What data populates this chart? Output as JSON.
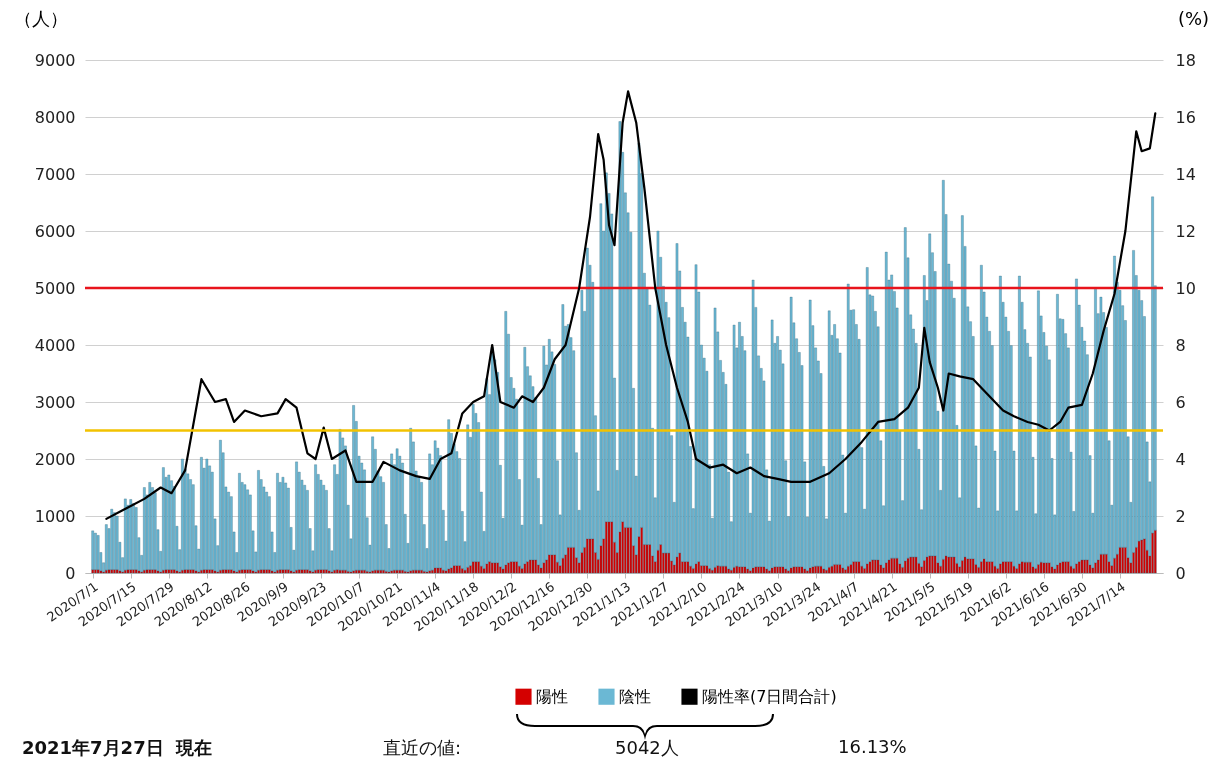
{
  "chart_data": {
    "type": "bar",
    "stacked": true,
    "ylabel": "（人）",
    "y2label": "(%)",
    "x": [
      "2020-07-01",
      "2020-07-02",
      "2020-07-03",
      "2020-07-04",
      "2020-07-05",
      "2020-07-06",
      "2020-07-07",
      "2020-07-08",
      "2020-07-09",
      "2020-07-10",
      "2020-07-11",
      "2020-07-12",
      "2020-07-13",
      "2020-07-14",
      "2020-07-15",
      "2020-07-16",
      "2020-07-17",
      "2020-07-18",
      "2020-07-19",
      "2020-07-20",
      "2020-07-21",
      "2020-07-22",
      "2020-07-23",
      "2020-07-24",
      "2020-07-25",
      "2020-07-26",
      "2020-07-27",
      "2020-07-28",
      "2020-07-29",
      "2020-07-30",
      "2020-07-31",
      "2020-08-01",
      "2020-08-02",
      "2020-08-03",
      "2020-08-04",
      "2020-08-05",
      "2020-08-06",
      "2020-08-07",
      "2020-08-08",
      "2020-08-09",
      "2020-08-10",
      "2020-08-11",
      "2020-08-12",
      "2020-08-13",
      "2020-08-14",
      "2020-08-15",
      "2020-08-16",
      "2020-08-17",
      "2020-08-18",
      "2020-08-19",
      "2020-08-20",
      "2020-08-21",
      "2020-08-22",
      "2020-08-23",
      "2020-08-24",
      "2020-08-25",
      "2020-08-26",
      "2020-08-27",
      "2020-08-28",
      "2020-08-29",
      "2020-08-30",
      "2020-08-31",
      "2020-09-01",
      "2020-09-02",
      "2020-09-03",
      "2020-09-04",
      "2020-09-05",
      "2020-09-06",
      "2020-09-07",
      "2020-09-08",
      "2020-09-09",
      "2020-09-10",
      "2020-09-11",
      "2020-09-12",
      "2020-09-13",
      "2020-09-14",
      "2020-09-15",
      "2020-09-16",
      "2020-09-17",
      "2020-09-18",
      "2020-09-19",
      "2020-09-20",
      "2020-09-21",
      "2020-09-22",
      "2020-09-23",
      "2020-09-24",
      "2020-09-25",
      "2020-09-26",
      "2020-09-27",
      "2020-09-28",
      "2020-09-29",
      "2020-09-30",
      "2020-10-01",
      "2020-10-02",
      "2020-10-03",
      "2020-10-04",
      "2020-10-05",
      "2020-10-06",
      "2020-10-07",
      "2020-10-08",
      "2020-10-09",
      "2020-10-10",
      "2020-10-11",
      "2020-10-12",
      "2020-10-13",
      "2020-10-14",
      "2020-10-15",
      "2020-10-16",
      "2020-10-17",
      "2020-10-18",
      "2020-10-19",
      "2020-10-20",
      "2020-10-21",
      "2020-10-22",
      "2020-10-23",
      "2020-10-24",
      "2020-10-25",
      "2020-10-26",
      "2020-10-27",
      "2020-10-28",
      "2020-10-29",
      "2020-10-30",
      "2020-10-31",
      "2020-11-01",
      "2020-11-02",
      "2020-11-03",
      "2020-11-04",
      "2020-11-05",
      "2020-11-06",
      "2020-11-07",
      "2020-11-08",
      "2020-11-09",
      "2020-11-10",
      "2020-11-11",
      "2020-11-12",
      "2020-11-13",
      "2020-11-14",
      "2020-11-15",
      "2020-11-16",
      "2020-11-17",
      "2020-11-18",
      "2020-11-19",
      "2020-11-20",
      "2020-11-21",
      "2020-11-22",
      "2020-11-23",
      "2020-11-24",
      "2020-11-25",
      "2020-11-26",
      "2020-11-27",
      "2020-11-28",
      "2020-11-29",
      "2020-11-30",
      "2020-12-01",
      "2020-12-02",
      "2020-12-03",
      "2020-12-04",
      "2020-12-05",
      "2020-12-06",
      "2020-12-07",
      "2020-12-08",
      "2020-12-09",
      "2020-12-10",
      "2020-12-11",
      "2020-12-12",
      "2020-12-13",
      "2020-12-14",
      "2020-12-15",
      "2020-12-16",
      "2020-12-17",
      "2020-12-18",
      "2020-12-19",
      "2020-12-20",
      "2020-12-21",
      "2020-12-22",
      "2020-12-23",
      "2020-12-24",
      "2020-12-25",
      "2020-12-26",
      "2020-12-27",
      "2020-12-28",
      "2020-12-29",
      "2020-12-30",
      "2020-12-31",
      "2021-01-01",
      "2021-01-02",
      "2021-01-03",
      "2021-01-04",
      "2021-01-05",
      "2021-01-06",
      "2021-01-07",
      "2021-01-08",
      "2021-01-09",
      "2021-01-10",
      "2021-01-11",
      "2021-01-12",
      "2021-01-13",
      "2021-01-14",
      "2021-01-15",
      "2021-01-16",
      "2021-01-17",
      "2021-01-18",
      "2021-01-19",
      "2021-01-20",
      "2021-01-21",
      "2021-01-22",
      "2021-01-23",
      "2021-01-24",
      "2021-01-25",
      "2021-01-26",
      "2021-01-27",
      "2021-01-28",
      "2021-01-29",
      "2021-01-30",
      "2021-01-31",
      "2021-02-01",
      "2021-02-02",
      "2021-02-03",
      "2021-02-04",
      "2021-02-05",
      "2021-02-06",
      "2021-02-07",
      "2021-02-08",
      "2021-02-09",
      "2021-02-10",
      "2021-02-11",
      "2021-02-12",
      "2021-02-13",
      "2021-02-14",
      "2021-02-15",
      "2021-02-16",
      "2021-02-17",
      "2021-02-18",
      "2021-02-19",
      "2021-02-20",
      "2021-02-21",
      "2021-02-22",
      "2021-02-23",
      "2021-02-24",
      "2021-02-25",
      "2021-02-26",
      "2021-02-27",
      "2021-02-28",
      "2021-03-01",
      "2021-03-02",
      "2021-03-03",
      "2021-03-04",
      "2021-03-05",
      "2021-03-06",
      "2021-03-07",
      "2021-03-08",
      "2021-03-09",
      "2021-03-10",
      "2021-03-11",
      "2021-03-12",
      "2021-03-13",
      "2021-03-14",
      "2021-03-15",
      "2021-03-16",
      "2021-03-17",
      "2021-03-18",
      "2021-03-19",
      "2021-03-20",
      "2021-03-21",
      "2021-03-22",
      "2021-03-23",
      "2021-03-24",
      "2021-03-25",
      "2021-03-26",
      "2021-03-27",
      "2021-03-28",
      "2021-03-29",
      "2021-03-30",
      "2021-03-31",
      "2021-04-01",
      "2021-04-02",
      "2021-04-03",
      "2021-04-04",
      "2021-04-05",
      "2021-04-06",
      "2021-04-07",
      "2021-04-08",
      "2021-04-09",
      "2021-04-10",
      "2021-04-11",
      "2021-04-12",
      "2021-04-13",
      "2021-04-14",
      "2021-04-15",
      "2021-04-16",
      "2021-04-17",
      "2021-04-18",
      "2021-04-19",
      "2021-04-20",
      "2021-04-21",
      "2021-04-22",
      "2021-04-23",
      "2021-04-24",
      "2021-04-25",
      "2021-04-26",
      "2021-04-27",
      "2021-04-28",
      "2021-04-29",
      "2021-04-30",
      "2021-05-01",
      "2021-05-02",
      "2021-05-03",
      "2021-05-04",
      "2021-05-05",
      "2021-05-06",
      "2021-05-07",
      "2021-05-08",
      "2021-05-09",
      "2021-05-10",
      "2021-05-11",
      "2021-05-12",
      "2021-05-13",
      "2021-05-14",
      "2021-05-15",
      "2021-05-16",
      "2021-05-17",
      "2021-05-18",
      "2021-05-19",
      "2021-05-20",
      "2021-05-21",
      "2021-05-22",
      "2021-05-23",
      "2021-05-24",
      "2021-05-25",
      "2021-05-26",
      "2021-05-27",
      "2021-05-28",
      "2021-05-29",
      "2021-05-30",
      "2021-05-31",
      "2021-06-01",
      "2021-06-02",
      "2021-06-03",
      "2021-06-04",
      "2021-06-05",
      "2021-06-06",
      "2021-06-07",
      "2021-06-08",
      "2021-06-09",
      "2021-06-10",
      "2021-06-11",
      "2021-06-12",
      "2021-06-13",
      "2021-06-14",
      "2021-06-15",
      "2021-06-16",
      "2021-06-17",
      "2021-06-18",
      "2021-06-19",
      "2021-06-20",
      "2021-06-21",
      "2021-06-22",
      "2021-06-23",
      "2021-06-24",
      "2021-06-25",
      "2021-06-26",
      "2021-06-27",
      "2021-06-28",
      "2021-06-29",
      "2021-06-30",
      "2021-07-01",
      "2021-07-02",
      "2021-07-03",
      "2021-07-04",
      "2021-07-05",
      "2021-07-06",
      "2021-07-07",
      "2021-07-08",
      "2021-07-09",
      "2021-07-10",
      "2021-07-11",
      "2021-07-12",
      "2021-07-13",
      "2021-07-14",
      "2021-07-15",
      "2021-07-16",
      "2021-07-17",
      "2021-07-18",
      "2021-07-19",
      "2021-07-20",
      "2021-07-21",
      "2021-07-22",
      "2021-07-23",
      "2021-07-24",
      "2021-07-25",
      "2021-07-26",
      "2021-07-27"
    ],
    "series": [
      {
        "name": "陽性",
        "color": "#d40000",
        "values": [
          60,
          60,
          60,
          40,
          20,
          50,
          60,
          60,
          60,
          60,
          40,
          20,
          50,
          60,
          60,
          60,
          60,
          40,
          20,
          50,
          60,
          60,
          60,
          60,
          40,
          20,
          50,
          60,
          60,
          60,
          60,
          40,
          20,
          50,
          60,
          60,
          60,
          60,
          40,
          20,
          50,
          60,
          60,
          60,
          60,
          40,
          20,
          50,
          60,
          60,
          60,
          60,
          40,
          20,
          50,
          60,
          60,
          60,
          60,
          40,
          20,
          50,
          60,
          60,
          60,
          60,
          40,
          20,
          50,
          60,
          60,
          60,
          60,
          40,
          20,
          50,
          60,
          60,
          60,
          60,
          40,
          20,
          50,
          60,
          60,
          60,
          60,
          40,
          20,
          50,
          60,
          50,
          50,
          50,
          30,
          20,
          40,
          50,
          50,
          50,
          50,
          30,
          20,
          40,
          50,
          50,
          50,
          50,
          30,
          20,
          40,
          50,
          50,
          50,
          50,
          30,
          20,
          40,
          50,
          50,
          50,
          50,
          30,
          20,
          40,
          50,
          90,
          90,
          90,
          50,
          40,
          70,
          90,
          130,
          130,
          130,
          80,
          50,
          100,
          130,
          200,
          200,
          200,
          120,
          80,
          160,
          200,
          180,
          180,
          180,
          110,
          70,
          140,
          180,
          200,
          200,
          200,
          120,
          80,
          160,
          200,
          230,
          230,
          230,
          140,
          90,
          180,
          230,
          320,
          320,
          320,
          190,
          130,
          260,
          320,
          450,
          450,
          450,
          270,
          180,
          360,
          450,
          600,
          600,
          600,
          360,
          240,
          480,
          600,
          900,
          900,
          900,
          540,
          360,
          720,
          900,
          800,
          800,
          800,
          480,
          320,
          640,
          800,
          500,
          500,
          500,
          300,
          200,
          400,
          500,
          350,
          350,
          350,
          210,
          140,
          280,
          350,
          200,
          200,
          200,
          120,
          80,
          160,
          200,
          130,
          130,
          130,
          80,
          50,
          100,
          130,
          120,
          120,
          120,
          70,
          50,
          100,
          120,
          110,
          110,
          110,
          70,
          40,
          90,
          110,
          110,
          110,
          110,
          70,
          40,
          90,
          110,
          110,
          110,
          110,
          70,
          40,
          90,
          110,
          110,
          110,
          110,
          70,
          40,
          90,
          110,
          120,
          120,
          120,
          70,
          50,
          100,
          120,
          150,
          150,
          150,
          90,
          60,
          120,
          150,
          200,
          200,
          200,
          120,
          80,
          160,
          200,
          230,
          230,
          230,
          140,
          90,
          180,
          230,
          260,
          260,
          260,
          160,
          100,
          210,
          260,
          280,
          280,
          280,
          170,
          110,
          220,
          280,
          300,
          300,
          300,
          180,
          120,
          240,
          300,
          280,
          280,
          280,
          170,
          110,
          220,
          280,
          250,
          250,
          250,
          150,
          100,
          200,
          250,
          200,
          200,
          200,
          120,
          80,
          160,
          200,
          200,
          200,
          200,
          120,
          80,
          160,
          200,
          190,
          190,
          190,
          110,
          80,
          150,
          190,
          180,
          180,
          180,
          110,
          70,
          140,
          180,
          200,
          200,
          200,
          120,
          80,
          160,
          200,
          230,
          230,
          230,
          140,
          90,
          180,
          230,
          330,
          330,
          330,
          200,
          130,
          260,
          330,
          450,
          450,
          450,
          270,
          180,
          360,
          450,
          560,
          580,
          600,
          400,
          300,
          700,
          750
        ]
      },
      {
        "name": "陰性",
        "color": "#6bb8d4",
        "values": [
          680,
          640,
          600,
          320,
          160,
          800,
          720,
          1060,
          1000,
          940,
          500,
          250,
          1250,
          1130,
          1230,
          1160,
          1090,
          580,
          290,
          1450,
          1310,
          1530,
          1440,
          1350,
          720,
          360,
          1800,
          1620,
          1660,
          1560,
          1460,
          780,
          390,
          1950,
          1760,
          1680,
          1580,
          1490,
          790,
          400,
          1980,
          1780,
          1940,
          1820,
          1710,
          910,
          460,
          2280,
          2050,
          1450,
          1360,
          1280,
          680,
          340,
          1700,
          1530,
          1490,
          1400,
          1310,
          700,
          350,
          1750,
          1580,
          1450,
          1360,
          1280,
          680,
          340,
          1700,
          1530,
          1620,
          1520,
          1430,
          760,
          380,
          1900,
          1710,
          1570,
          1480,
          1390,
          740,
          370,
          1850,
          1670,
          1570,
          1480,
          1390,
          740,
          370,
          1850,
          1670,
          2470,
          2320,
          2180,
          1160,
          580,
          2900,
          2610,
          2000,
          1880,
          1760,
          940,
          470,
          2350,
          2120,
          1740,
          1640,
          1540,
          820,
          410,
          2050,
          1850,
          2130,
          2000,
          1880,
          1000,
          500,
          2500,
          2250,
          1740,
          1640,
          1540,
          820,
          410,
          2050,
          1850,
          2230,
          2100,
          1970,
          1050,
          520,
          2620,
          2360,
          2130,
          2000,
          1880,
          1000,
          500,
          2500,
          2250,
          2760,
          2600,
          2440,
          1300,
          650,
          3250,
          2930,
          3780,
          3560,
          3340,
          1780,
          890,
          4450,
          4010,
          3230,
          3040,
          2850,
          1520,
          760,
          3800,
          3420,
          3230,
          3040,
          2850,
          1520,
          760,
          3800,
          3420,
          3780,
          3560,
          3340,
          1780,
          890,
          4450,
          4010,
          3910,
          3680,
          3450,
          1840,
          920,
          4600,
          4140,
          5100,
          4800,
          4500,
          2400,
          1200,
          6000,
          5400,
          6120,
          5760,
          5400,
          2880,
          1440,
          7200,
          6480,
          5870,
          5520,
          5180,
          2760,
          1380,
          6900,
          6210,
          4760,
          4480,
          4200,
          2240,
          1120,
          5600,
          5040,
          4680,
          4400,
          4130,
          2200,
          1100,
          5500,
          4950,
          4460,
          4200,
          3940,
          2100,
          1050,
          5250,
          4730,
          3870,
          3640,
          3410,
          1820,
          910,
          4550,
          4100,
          3610,
          3400,
          3190,
          1700,
          850,
          4250,
          3830,
          4290,
          4040,
          3790,
          2020,
          1010,
          5050,
          4550,
          3700,
          3480,
          3260,
          1740,
          870,
          4350,
          3920,
          4040,
          3800,
          3560,
          1900,
          950,
          4750,
          4280,
          4000,
          3760,
          3530,
          1880,
          940,
          4700,
          4230,
          3830,
          3600,
          3380,
          1800,
          900,
          4500,
          4050,
          4210,
          3960,
          3710,
          1980,
          990,
          4950,
          4460,
          4420,
          4160,
          3900,
          2080,
          1040,
          5200,
          4680,
          4630,
          4360,
          4090,
          2180,
          1090,
          5450,
          4910,
          4970,
          4680,
          4390,
          2340,
          1170,
          5850,
          5270,
          4250,
          4000,
          3750,
          2000,
          1000,
          5000,
          4500,
          5650,
          5320,
          4990,
          2660,
          1330,
          6650,
          5990,
          5140,
          4840,
          4540,
          2420,
          1210,
          6050,
          5450,
          4420,
          4160,
          3900,
          2080,
          1040,
          5200,
          4680,
          4290,
          4040,
          3790,
          2020,
          1010,
          5050,
          4550,
          4290,
          4040,
          3790,
          2020,
          1010,
          5050,
          4550,
          4080,
          3840,
          3600,
          1920,
          960,
          4800,
          4320,
          4040,
          3800,
          3560,
          1900,
          950,
          4750,
          4280,
          4250,
          4000,
          3750,
          2000,
          1000,
          5000,
          4500,
          4080,
          3840,
          3600,
          1920,
          960,
          4800,
          4320,
          4510,
          4240,
          3980,
          2120,
          1060,
          5300,
          4770,
          4510,
          4240,
          3980,
          2120,
          1060,
          5300,
          4770,
          4400,
          4200,
          3900,
          1900,
          1300,
          5900,
          4290
        ]
      },
      {
        "name": "陽性率(7日間合計)",
        "type": "line",
        "axis": "y2",
        "color": "#000000",
        "x": [
          "2020-07-06",
          "2020-07-12",
          "2020-07-20",
          "2020-07-26",
          "2020-07-30",
          "2020-08-04",
          "2020-08-10",
          "2020-08-15",
          "2020-08-19",
          "2020-08-22",
          "2020-08-26",
          "2020-09-01",
          "2020-09-07",
          "2020-09-10",
          "2020-09-14",
          "2020-09-18",
          "2020-09-21",
          "2020-09-24",
          "2020-09-27",
          "2020-10-02",
          "2020-10-06",
          "2020-10-12",
          "2020-10-16",
          "2020-10-22",
          "2020-10-28",
          "2020-11-02",
          "2020-11-06",
          "2020-11-10",
          "2020-11-14",
          "2020-11-18",
          "2020-11-22",
          "2020-11-25",
          "2020-11-28",
          "2020-12-03",
          "2020-12-06",
          "2020-12-10",
          "2020-12-14",
          "2020-12-18",
          "2020-12-22",
          "2020-12-27",
          "2020-12-31",
          "2021-01-03",
          "2021-01-05",
          "2021-01-07",
          "2021-01-09",
          "2021-01-12",
          "2021-01-14",
          "2021-01-17",
          "2021-01-20",
          "2021-01-24",
          "2021-01-28",
          "2021-02-01",
          "2021-02-05",
          "2021-02-08",
          "2021-02-13",
          "2021-02-18",
          "2021-02-23",
          "2021-02-28",
          "2021-03-05",
          "2021-03-10",
          "2021-03-15",
          "2021-03-22",
          "2021-03-29",
          "2021-04-04",
          "2021-04-10",
          "2021-04-16",
          "2021-04-22",
          "2021-04-27",
          "2021-05-01",
          "2021-05-03",
          "2021-05-05",
          "2021-05-08",
          "2021-05-10",
          "2021-05-12",
          "2021-05-16",
          "2021-05-21",
          "2021-05-26",
          "2021-06-01",
          "2021-06-05",
          "2021-06-10",
          "2021-06-14",
          "2021-06-18",
          "2021-06-22",
          "2021-06-25",
          "2021-06-30",
          "2021-07-04",
          "2021-07-08",
          "2021-07-12",
          "2021-07-16",
          "2021-07-20",
          "2021-07-22",
          "2021-07-25",
          "2021-07-27"
        ],
        "values": [
          1.9,
          2.2,
          2.6,
          3.0,
          2.8,
          3.6,
          6.8,
          6.0,
          6.1,
          5.3,
          5.7,
          5.5,
          5.6,
          6.1,
          5.8,
          4.2,
          4.0,
          5.1,
          4.0,
          4.3,
          3.2,
          3.2,
          3.9,
          3.6,
          3.4,
          3.3,
          4.0,
          4.2,
          5.6,
          6.0,
          6.2,
          8.0,
          6.0,
          5.8,
          6.2,
          6.0,
          6.5,
          7.5,
          8.0,
          10.0,
          12.5,
          15.4,
          14.5,
          12.2,
          11.5,
          15.8,
          16.9,
          15.8,
          13.5,
          10.0,
          8.0,
          6.5,
          5.3,
          4.0,
          3.7,
          3.8,
          3.5,
          3.7,
          3.4,
          3.3,
          3.2,
          3.2,
          3.5,
          4.0,
          4.6,
          5.3,
          5.4,
          5.8,
          6.5,
          8.6,
          7.4,
          6.5,
          5.7,
          7.0,
          6.9,
          6.8,
          6.3,
          5.7,
          5.5,
          5.3,
          5.2,
          5.0,
          5.3,
          5.8,
          5.9,
          7.0,
          8.5,
          9.8,
          12.0,
          15.5,
          14.8,
          14.9,
          16.13
        ]
      }
    ],
    "xlim": [
      "2020-06-30",
      "2021-07-28"
    ],
    "xticks": [
      {
        "value": "2020-07-01",
        "label": "2020/7/1"
      },
      {
        "value": "2020-07-15",
        "label": "2020/7/15"
      },
      {
        "value": "2020-07-29",
        "label": "2020/7/29"
      },
      {
        "value": "2020-08-12",
        "label": "2020/8/12"
      },
      {
        "value": "2020-08-26",
        "label": "2020/8/26"
      },
      {
        "value": "2020-09-09",
        "label": "2020/9/9"
      },
      {
        "value": "2020-09-23",
        "label": "2020/9/23"
      },
      {
        "value": "2020-10-07",
        "label": "2020/10/7"
      },
      {
        "value": "2020-10-21",
        "label": "2020/10/21"
      },
      {
        "value": "2020-11-04",
        "label": "2020/11/4"
      },
      {
        "value": "2020-11-18",
        "label": "2020/11/18"
      },
      {
        "value": "2020-12-02",
        "label": "2020/12/2"
      },
      {
        "value": "2020-12-16",
        "label": "2020/12/16"
      },
      {
        "value": "2020-12-30",
        "label": "2020/12/30"
      },
      {
        "value": "2021-01-13",
        "label": "2021/1/13"
      },
      {
        "value": "2021-01-27",
        "label": "2021/1/27"
      },
      {
        "value": "2021-02-10",
        "label": "2021/2/10"
      },
      {
        "value": "2021-02-24",
        "label": "2021/2/24"
      },
      {
        "value": "2021-03-10",
        "label": "2021/3/10"
      },
      {
        "value": "2021-03-24",
        "label": "2021/3/24"
      },
      {
        "value": "2021-04-07",
        "label": "2021/4/7"
      },
      {
        "value": "2021-04-21",
        "label": "2021/4/21"
      },
      {
        "value": "2021-05-05",
        "label": "2021/5/5"
      },
      {
        "value": "2021-05-19",
        "label": "2021/5/19"
      },
      {
        "value": "2021-06-02",
        "label": "2021/6/2"
      },
      {
        "value": "2021-06-16",
        "label": "2021/6/16"
      },
      {
        "value": "2021-06-30",
        "label": "2021/6/30"
      },
      {
        "value": "2021-07-14",
        "label": "2021/7/14"
      }
    ],
    "ylim": [
      0,
      9000
    ],
    "yticks": [
      0,
      1000,
      2000,
      3000,
      4000,
      5000,
      6000,
      7000,
      8000,
      9000
    ],
    "y2lim": [
      0,
      18
    ],
    "y2ticks": [
      0,
      2,
      4,
      6,
      8,
      10,
      12,
      14,
      16,
      18
    ],
    "grid": "y",
    "legend": "bottom",
    "ref_lines": [
      {
        "axis": "y",
        "value": 5000,
        "color": "#e8141c"
      },
      {
        "axis": "y2",
        "value": 5,
        "color": "#f2c200"
      }
    ],
    "annotations": [
      "2021年7月27日  現在",
      "直近の値:",
      "5042人",
      "16.13%"
    ]
  }
}
